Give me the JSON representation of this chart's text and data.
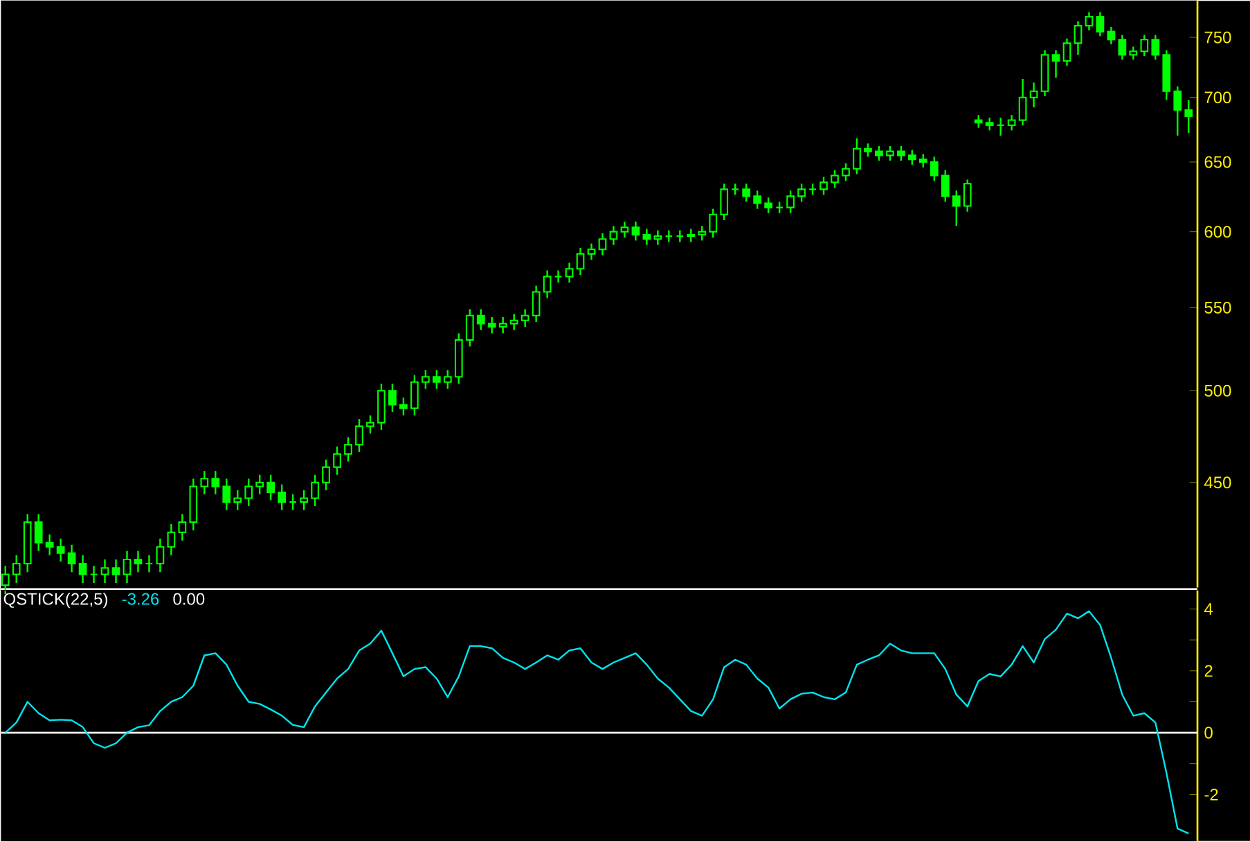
{
  "chart_data": [
    {
      "type": "candlestick",
      "color": "#00ff00",
      "log": true,
      "tick_labels": "y",
      "categories": [
        null,
        null,
        null,
        null,
        null,
        null,
        null,
        null,
        null,
        null,
        null,
        null,
        null,
        null,
        null,
        null,
        null,
        null,
        null,
        null,
        null,
        null,
        null,
        null,
        null,
        null,
        null,
        null,
        null,
        null,
        null,
        null,
        null,
        null,
        null,
        null,
        null,
        null,
        null,
        null,
        null,
        null,
        null,
        null,
        null,
        null,
        null,
        null,
        null,
        null,
        null,
        null,
        null,
        null,
        null,
        null,
        null,
        null,
        null,
        null,
        null,
        null,
        null,
        null,
        null,
        null,
        null,
        null,
        null,
        null,
        null,
        null,
        null,
        null,
        null,
        null,
        null,
        null,
        null,
        null,
        null,
        null,
        null,
        null,
        null,
        null,
        null,
        null,
        null,
        null,
        null,
        null,
        null,
        null,
        null,
        null,
        null,
        null,
        null,
        null,
        null,
        null,
        null,
        null,
        null,
        null,
        null,
        null
      ],
      "ohlc": [
        [
          400,
          409,
          396,
          405
        ],
        [
          405,
          414,
          401,
          410
        ],
        [
          410,
          434,
          406,
          430
        ],
        [
          430,
          434,
          416,
          420
        ],
        [
          420,
          424,
          414,
          418
        ],
        [
          418,
          422,
          411,
          415
        ],
        [
          415,
          419,
          406,
          410
        ],
        [
          410,
          414,
          401,
          405
        ],
        [
          405,
          409,
          401,
          405
        ],
        [
          405,
          412,
          401,
          408
        ],
        [
          408,
          412,
          401,
          405
        ],
        [
          405,
          416,
          401,
          412
        ],
        [
          412,
          416,
          406,
          410
        ],
        [
          410,
          414,
          406,
          410
        ],
        [
          410,
          422,
          406,
          418
        ],
        [
          418,
          429,
          414,
          425
        ],
        [
          425,
          434,
          421,
          430
        ],
        [
          430,
          452,
          426,
          448
        ],
        [
          448,
          456,
          444,
          452
        ],
        [
          452,
          456,
          444,
          448
        ],
        [
          448,
          452,
          436,
          440
        ],
        [
          440,
          446,
          436,
          442
        ],
        [
          442,
          452,
          438,
          448
        ],
        [
          448,
          454,
          444,
          450
        ],
        [
          450,
          454,
          441,
          445
        ],
        [
          445,
          449,
          436,
          440
        ],
        [
          440,
          444,
          436,
          440
        ],
        [
          440,
          446,
          436,
          442
        ],
        [
          442,
          454,
          438,
          450
        ],
        [
          450,
          462,
          446,
          458
        ],
        [
          458,
          469,
          454,
          465
        ],
        [
          465,
          474,
          461,
          470
        ],
        [
          470,
          484,
          466,
          480
        ],
        [
          480,
          486,
          476,
          482
        ],
        [
          482,
          504,
          478,
          500
        ],
        [
          500,
          504,
          488,
          492
        ],
        [
          492,
          496,
          486,
          490
        ],
        [
          490,
          509,
          486,
          505
        ],
        [
          505,
          512,
          501,
          508
        ],
        [
          508,
          512,
          501,
          505
        ],
        [
          505,
          512,
          501,
          508
        ],
        [
          508,
          534,
          504,
          530
        ],
        [
          530,
          549,
          526,
          545
        ],
        [
          545,
          549,
          536,
          540
        ],
        [
          540,
          544,
          534,
          538
        ],
        [
          538,
          544,
          534,
          540
        ],
        [
          540,
          546,
          536,
          542
        ],
        [
          542,
          549,
          538,
          545
        ],
        [
          545,
          564,
          541,
          560
        ],
        [
          560,
          574,
          556,
          570
        ],
        [
          570,
          574,
          566,
          570
        ],
        [
          570,
          579,
          566,
          575
        ],
        [
          575,
          589,
          571,
          585
        ],
        [
          585,
          592,
          581,
          588
        ],
        [
          588,
          599,
          584,
          595
        ],
        [
          595,
          604,
          591,
          600
        ],
        [
          600,
          607,
          596,
          603
        ],
        [
          603,
          607,
          594,
          598
        ],
        [
          598,
          602,
          591,
          595
        ],
        [
          595,
          601,
          591,
          597
        ],
        [
          597,
          601,
          593,
          597
        ],
        [
          597,
          601,
          593,
          597
        ],
        [
          597,
          602,
          593,
          598
        ],
        [
          598,
          604,
          594,
          600
        ],
        [
          600,
          616,
          596,
          612
        ],
        [
          612,
          634,
          608,
          630
        ],
        [
          630,
          634,
          626,
          630
        ],
        [
          630,
          634,
          621,
          625
        ],
        [
          625,
          629,
          616,
          620
        ],
        [
          620,
          624,
          613,
          617
        ],
        [
          617,
          621,
          613,
          617
        ],
        [
          617,
          629,
          613,
          625
        ],
        [
          625,
          634,
          621,
          630
        ],
        [
          630,
          634,
          626,
          630
        ],
        [
          630,
          639,
          626,
          635
        ],
        [
          635,
          644,
          631,
          640
        ],
        [
          640,
          649,
          636,
          645
        ],
        [
          645,
          668,
          641,
          660
        ],
        [
          660,
          664,
          654,
          658
        ],
        [
          658,
          662,
          651,
          655
        ],
        [
          655,
          662,
          651,
          658
        ],
        [
          658,
          662,
          651,
          655
        ],
        [
          655,
          659,
          648,
          652
        ],
        [
          652,
          656,
          646,
          650
        ],
        [
          650,
          654,
          636,
          640
        ],
        [
          640,
          644,
          621,
          625
        ],
        [
          625,
          629,
          604,
          618
        ],
        [
          618,
          637,
          614,
          634
        ],
        [
          682,
          686,
          676,
          680
        ],
        [
          680,
          684,
          674,
          678
        ],
        [
          678,
          684,
          670,
          678
        ],
        [
          678,
          686,
          674,
          682
        ],
        [
          682,
          715,
          678,
          700
        ],
        [
          700,
          712,
          692,
          705
        ],
        [
          705,
          739,
          701,
          735
        ],
        [
          735,
          739,
          716,
          730
        ],
        [
          730,
          749,
          726,
          745
        ],
        [
          745,
          764,
          735,
          760
        ],
        [
          760,
          772,
          756,
          768
        ],
        [
          768,
          772,
          751,
          755
        ],
        [
          755,
          759,
          744,
          748
        ],
        [
          748,
          752,
          731,
          735
        ],
        [
          735,
          742,
          731,
          738
        ],
        [
          738,
          752,
          734,
          748
        ],
        [
          748,
          752,
          731,
          735
        ],
        [
          735,
          739,
          698,
          705
        ],
        [
          705,
          709,
          670,
          690
        ],
        [
          690,
          698,
          672,
          685
        ]
      ],
      "ylim": [
        399,
        782
      ],
      "yticks": [
        450,
        500,
        550,
        600,
        650,
        700,
        750
      ]
    },
    {
      "type": "line",
      "title": "QSTICK(22,5)",
      "annotations": [
        "-3.26",
        "0.00"
      ],
      "tick_labels": "y",
      "categories": [
        null,
        null,
        null,
        null,
        null,
        null,
        null,
        null,
        null,
        null,
        null,
        null,
        null,
        null,
        null,
        null,
        null,
        null,
        null,
        null,
        null,
        null,
        null,
        null,
        null,
        null,
        null,
        null,
        null,
        null,
        null,
        null,
        null,
        null,
        null,
        null,
        null,
        null,
        null,
        null,
        null,
        null,
        null,
        null,
        null,
        null,
        null,
        null,
        null,
        null,
        null,
        null,
        null,
        null,
        null,
        null,
        null,
        null,
        null,
        null,
        null,
        null,
        null,
        null,
        null,
        null,
        null,
        null,
        null,
        null,
        null,
        null,
        null,
        null,
        null,
        null,
        null,
        null,
        null,
        null,
        null,
        null,
        null,
        null,
        null,
        null,
        null,
        null,
        null,
        null,
        null,
        null,
        null,
        null,
        null,
        null,
        null,
        null,
        null,
        null,
        null,
        null,
        null,
        null,
        null,
        null,
        null,
        null
      ],
      "series": [
        {
          "color": "#00e5ee",
          "values": [
            0.0,
            0.33,
            1.0,
            0.63,
            0.4,
            0.42,
            0.4,
            0.18,
            -0.34,
            -0.49,
            -0.34,
            0.0,
            0.18,
            0.24,
            0.7,
            1.0,
            1.15,
            1.52,
            2.5,
            2.57,
            2.2,
            1.52,
            1.0,
            0.93,
            0.75,
            0.55,
            0.25,
            0.18,
            0.85,
            1.3,
            1.75,
            2.06,
            2.66,
            2.88,
            3.3,
            2.57,
            1.82,
            2.06,
            2.12,
            1.75,
            1.15,
            1.82,
            2.8,
            2.8,
            2.73,
            2.42,
            2.27,
            2.06,
            2.27,
            2.5,
            2.36,
            2.66,
            2.73,
            2.27,
            2.06,
            2.27,
            2.42,
            2.57,
            2.2,
            1.75,
            1.46,
            1.08,
            0.7,
            0.55,
            1.08,
            2.12,
            2.36,
            2.2,
            1.75,
            1.46,
            0.78,
            1.08,
            1.26,
            1.3,
            1.15,
            1.08,
            1.3,
            2.2,
            2.36,
            2.5,
            2.88,
            2.66,
            2.57,
            2.57,
            2.57,
            2.06,
            1.23,
            0.85,
            1.67,
            1.9,
            1.82,
            2.2,
            2.8,
            2.27,
            3.03,
            3.33,
            3.85,
            3.7,
            3.93,
            3.48,
            2.42,
            1.23,
            0.55,
            0.63,
            0.33,
            -1.3,
            -3.1,
            -3.26
          ]
        }
      ],
      "ref_lines": [
        {
          "axis": "y",
          "value": 0,
          "color": "#ffffff"
        }
      ],
      "ylim": [
        -3.5,
        4.6
      ],
      "yticks": [
        -2,
        {
          "value": -1,
          "label": null
        },
        0,
        {
          "value": 1,
          "label": null
        },
        2,
        {
          "value": 3,
          "label": null
        },
        4
      ]
    }
  ]
}
